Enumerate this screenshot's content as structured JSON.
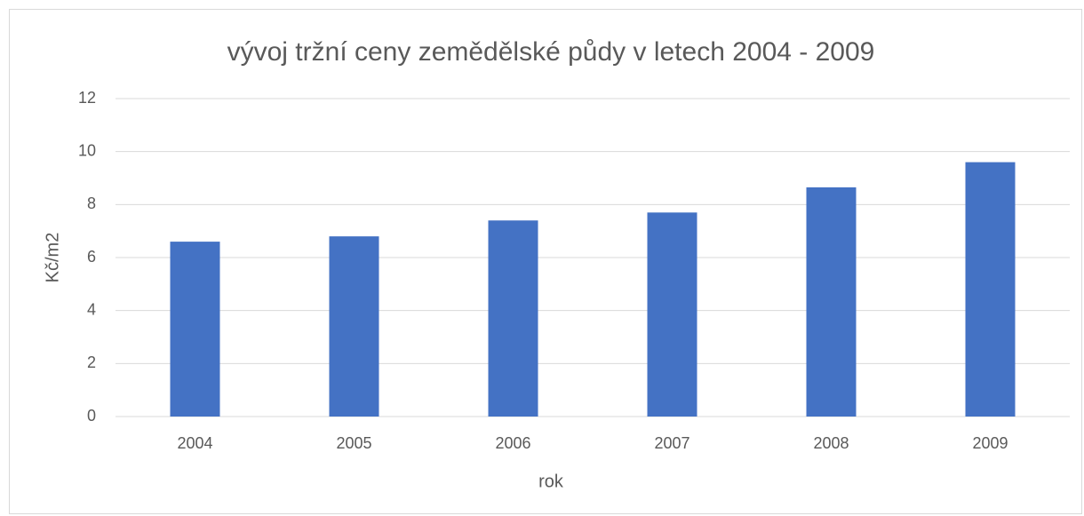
{
  "chart_data": {
    "type": "bar",
    "title": "vývoj tržní ceny zemědělské půdy v letech 2004 - 2009",
    "x_label": "rok",
    "y_label": "Kč/m2",
    "categories": [
      "2004",
      "2005",
      "2006",
      "2007",
      "2008",
      "2009"
    ],
    "values": [
      6.6,
      6.8,
      7.4,
      7.7,
      8.65,
      9.6
    ],
    "color": "#4472c4",
    "ylim": [
      0,
      12
    ],
    "yticks": [
      0,
      2,
      4,
      6,
      8,
      10,
      12
    ],
    "grid": true
  }
}
